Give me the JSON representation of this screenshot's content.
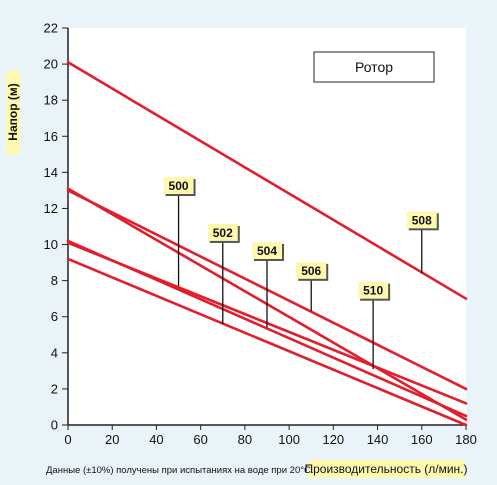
{
  "chart_data": {
    "type": "line",
    "title": "",
    "xlabel": "Производительность (л/мин.)",
    "ylabel": "Напор (м)",
    "legend_box": "Ротор",
    "note": "Данные (±10%) получены при испытаниях на воде при 20°С.",
    "xlim": [
      0,
      180
    ],
    "ylim": [
      0,
      22
    ],
    "x_ticks": [
      0,
      20,
      40,
      60,
      80,
      100,
      120,
      140,
      160,
      180
    ],
    "y_ticks": [
      0,
      2,
      4,
      6,
      8,
      10,
      12,
      14,
      16,
      18,
      20,
      22
    ],
    "grid": false,
    "series": [
      {
        "name": "500",
        "x": [
          0,
          180
        ],
        "y": [
          10.1,
          1.2
        ],
        "label_at": {
          "x": 50,
          "y": 7.7
        },
        "label_top": 12.8
      },
      {
        "name": "502",
        "x": [
          0,
          180
        ],
        "y": [
          13.1,
          0.3
        ],
        "label_at": {
          "x": 70,
          "y": 5.6
        },
        "label_top": 10.2
      },
      {
        "name": "504",
        "x": [
          0,
          180
        ],
        "y": [
          13.0,
          2.0
        ],
        "label_at": {
          "x": 90,
          "y": 5.4
        },
        "label_top": 9.2
      },
      {
        "name": "506",
        "x": [
          0,
          180
        ],
        "y": [
          9.2,
          0.0
        ],
        "label_at": {
          "x": 110,
          "y": 6.3
        },
        "label_top": 8.1
      },
      {
        "name": "508",
        "x": [
          0,
          180
        ],
        "y": [
          20.1,
          7.0
        ],
        "label_at": {
          "x": 160,
          "y": 8.4
        },
        "label_top": 10.9
      },
      {
        "name": "510",
        "x": [
          0,
          180
        ],
        "y": [
          10.2,
          0.5
        ],
        "label_at": {
          "x": 138,
          "y": 3.1
        },
        "label_top": 7.0
      }
    ],
    "colors": {
      "background": "#eaf3f8",
      "plot_bg": "#ffffff",
      "line": "#e11e2b",
      "label_bg": "#fff9b0",
      "label_shadow": "#555555",
      "axis": "#222222"
    }
  }
}
